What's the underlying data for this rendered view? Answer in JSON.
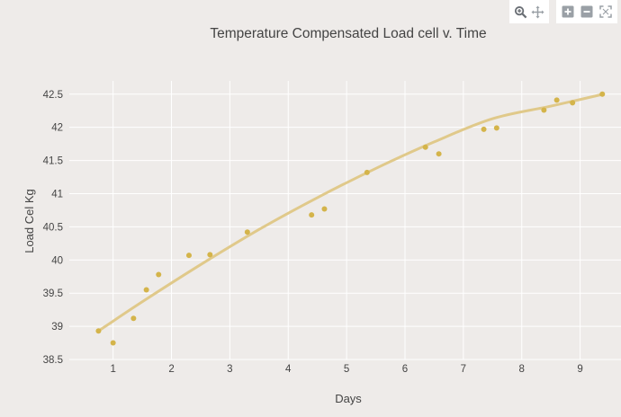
{
  "modebar": {
    "buttons": [
      {
        "icon": "zoom-icon"
      },
      {
        "icon": "pan-icon"
      },
      {
        "icon": "zoom-in-icon"
      },
      {
        "icon": "zoom-out-icon"
      },
      {
        "icon": "autoscale-icon"
      }
    ],
    "icon_color": "#9aa0a6",
    "icon_active_color": "#6a6f75"
  },
  "colors": {
    "background": "#eeebe9",
    "grid": "#ffffff",
    "points": "#d4b44a",
    "fit_line": "#e0c98a",
    "text": "#444444"
  },
  "chart_data": {
    "type": "scatter",
    "title": "Temperature Compensated Load cell v. Time",
    "xlabel": "Days",
    "ylabel": "Load Cel Kg",
    "xlim": [
      0.25,
      9.7
    ],
    "ylim": [
      38.5,
      42.7
    ],
    "xticks": [
      1,
      2,
      3,
      4,
      5,
      6,
      7,
      8,
      9
    ],
    "yticks": [
      38.5,
      39,
      39.5,
      40,
      40.5,
      41,
      41.5,
      42,
      42.5
    ],
    "xtick_labels": [
      "1",
      "2",
      "3",
      "4",
      "5",
      "6",
      "7",
      "8",
      "9"
    ],
    "ytick_labels": [
      "38.5",
      "39",
      "39.5",
      "40",
      "40.5",
      "41",
      "41.5",
      "42",
      "42.5"
    ],
    "grid": true,
    "legend": false,
    "series": [
      {
        "type": "scatter",
        "x": [
          0.75,
          1.0,
          1.35,
          1.57,
          1.78,
          2.3,
          2.66,
          3.3,
          4.4,
          4.62,
          5.35,
          6.35,
          6.58,
          7.35,
          7.57,
          8.38,
          8.6,
          8.87,
          9.38
        ],
        "y": [
          38.93,
          38.75,
          39.12,
          39.55,
          39.78,
          40.07,
          40.08,
          40.42,
          40.68,
          40.77,
          41.32,
          41.7,
          41.6,
          41.97,
          41.99,
          42.26,
          42.41,
          42.37,
          42.5
        ]
      },
      {
        "type": "line",
        "x": [
          0.75,
          1.5,
          2.5,
          3.5,
          4.5,
          5.5,
          6.5,
          7.5,
          8.5,
          9.4
        ],
        "y": [
          38.93,
          39.37,
          39.93,
          40.46,
          40.94,
          41.38,
          41.78,
          42.13,
          42.32,
          42.5
        ]
      }
    ]
  }
}
